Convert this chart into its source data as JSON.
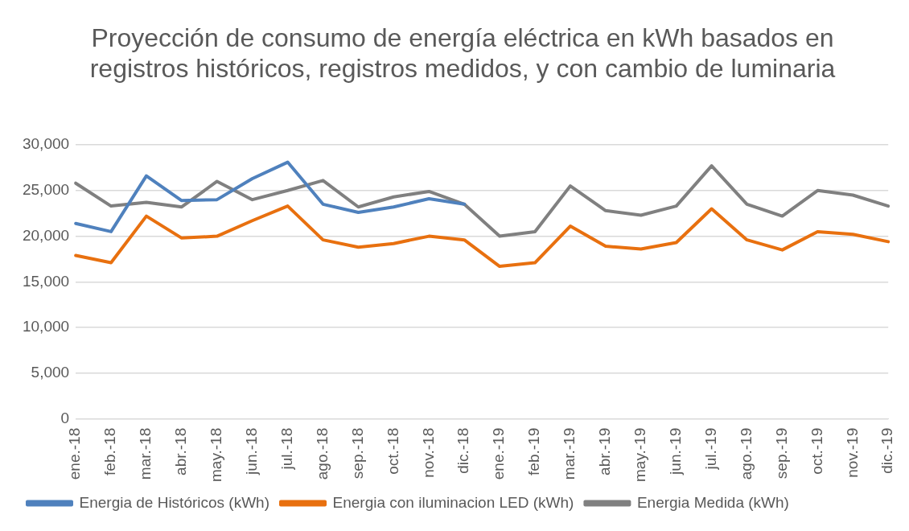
{
  "chart_data": {
    "type": "line",
    "title": "Proyección de consumo de energía eléctrica en kWh basados en registros históricos, registros medidos, y con cambio de luminaria",
    "categories": [
      "ene.-18",
      "feb.-18",
      "mar.-18",
      "abr.-18",
      "may.-18",
      "jun.-18",
      "jul.-18",
      "ago.-18",
      "sep.-18",
      "oct.-18",
      "nov.-18",
      "dic.-18",
      "ene.-19",
      "feb.-19",
      "mar.-19",
      "abr.-19",
      "may.-19",
      "jun.-19",
      "jul.-19",
      "ago.-19",
      "sep.-19",
      "oct.-19",
      "nov.-19",
      "dic.-19"
    ],
    "series": [
      {
        "name": "Energia de Históricos (kWh)",
        "color": "#4f81bd",
        "values": [
          21400,
          20500,
          26600,
          23900,
          24000,
          26300,
          28100,
          23500,
          22600,
          23200,
          24100,
          23500,
          null,
          null,
          null,
          null,
          null,
          null,
          null,
          null,
          null,
          null,
          null,
          null
        ]
      },
      {
        "name": "Energia con iluminacion LED (kWh)",
        "color": "#e8700f",
        "values": [
          17900,
          17100,
          22200,
          19800,
          20000,
          21700,
          23300,
          19600,
          18800,
          19200,
          20000,
          19600,
          16700,
          17100,
          21100,
          18900,
          18600,
          19300,
          23000,
          19600,
          18500,
          20500,
          20200,
          19400
        ]
      },
      {
        "name": "Energia Medida (kWh)",
        "color": "#808080",
        "values": [
          25800,
          23300,
          23700,
          23200,
          26000,
          24000,
          25000,
          26100,
          23200,
          24300,
          24900,
          23500,
          20000,
          20500,
          25500,
          22800,
          22300,
          23300,
          27700,
          23500,
          22200,
          25000,
          24500,
          23300
        ]
      }
    ],
    "ylim": [
      0,
      30000
    ],
    "yticks": [
      {
        "value": 0,
        "label": "0"
      },
      {
        "value": 5000,
        "label": "5,000"
      },
      {
        "value": 10000,
        "label": "10,000"
      },
      {
        "value": 15000,
        "label": "15,000"
      },
      {
        "value": 20000,
        "label": "20,000"
      },
      {
        "value": 25000,
        "label": "25,000"
      },
      {
        "value": 30000,
        "label": "30,000"
      }
    ],
    "grid": "y",
    "legend": "bottom",
    "marker": "none",
    "line_style": "solid"
  }
}
